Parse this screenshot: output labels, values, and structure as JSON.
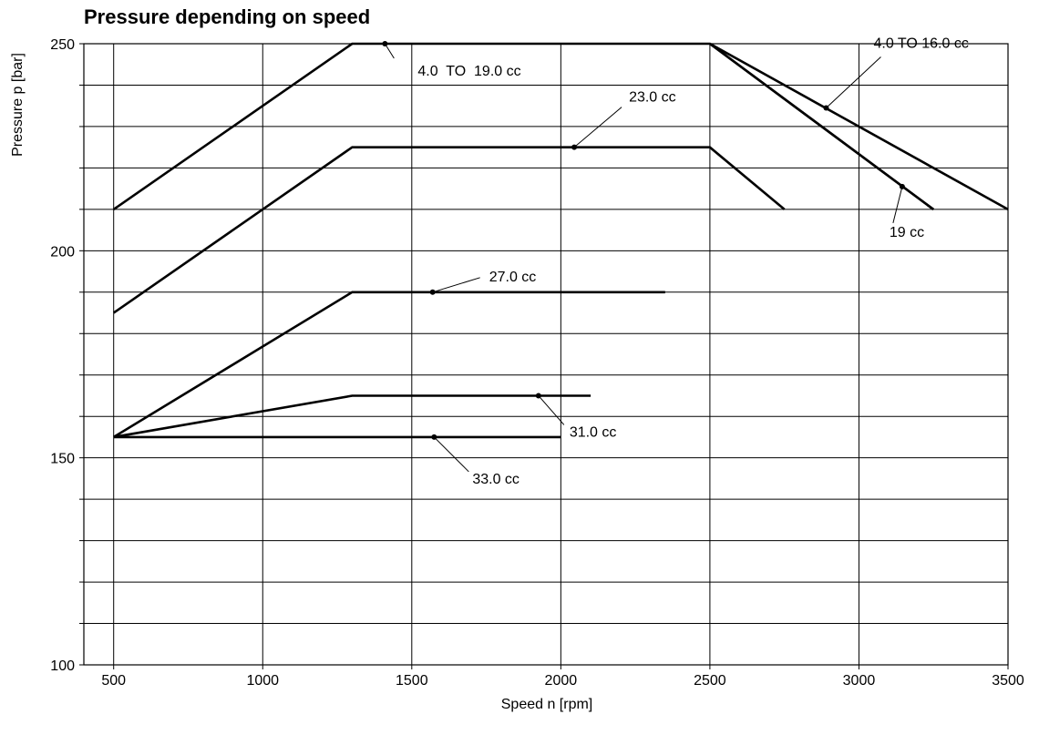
{
  "chart_data": {
    "type": "line",
    "title": "Pressure depending on speed",
    "xlabel": "Speed n [rpm]",
    "ylabel": "Pressure p [bar]",
    "xlim": [
      400,
      3500
    ],
    "ylim": [
      100,
      250
    ],
    "x_ticks": [
      500,
      1000,
      1500,
      2000,
      2500,
      3000,
      3500
    ],
    "y_ticks": [
      100,
      150,
      200,
      250
    ],
    "grid": true,
    "series": [
      {
        "name": "4.0  TO  19.0 cc",
        "x": [
          500,
          1300,
          2500,
          3250
        ],
        "y": [
          210,
          250,
          250,
          210
        ]
      },
      {
        "name": "4.0 TO 16.0 cc",
        "x": [
          2500,
          3500
        ],
        "y": [
          250,
          210
        ]
      },
      {
        "name": "19 cc",
        "x": [
          2500,
          3250
        ],
        "y": [
          250,
          210
        ]
      },
      {
        "name": "23.0 cc",
        "x": [
          500,
          1300,
          2500,
          2750
        ],
        "y": [
          185,
          225,
          225,
          210
        ]
      },
      {
        "name": "27.0 cc",
        "x": [
          500,
          1300,
          2350
        ],
        "y": [
          155,
          190,
          190
        ]
      },
      {
        "name": "31.0 cc",
        "x": [
          500,
          1300,
          2100
        ],
        "y": [
          155,
          165,
          165
        ]
      },
      {
        "name": "33.0 cc",
        "x": [
          500,
          2000
        ],
        "y": [
          155,
          155
        ]
      }
    ],
    "annotations": [
      {
        "text": "4.0  TO  19.0 cc",
        "point": [
          1410,
          250
        ]
      },
      {
        "text": "4.0 TO 16.0 cc",
        "point": [
          2890,
          234.5
        ]
      },
      {
        "text": "19 cc",
        "point": [
          3145,
          215.5
        ]
      },
      {
        "text": "23.0 cc",
        "point": [
          2045,
          225
        ]
      },
      {
        "text": "27.0 cc",
        "point": [
          1570,
          190
        ]
      },
      {
        "text": "31.0 cc",
        "point": [
          1925,
          165
        ]
      },
      {
        "text": "33.0 cc",
        "point": [
          1575,
          155
        ]
      }
    ]
  }
}
